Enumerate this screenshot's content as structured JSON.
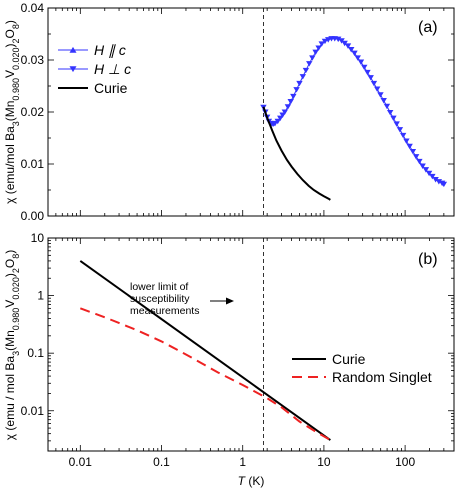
{
  "chart_data": [
    {
      "type": "scatter",
      "panel_label": "(a)",
      "ylabel": "χ (emu/mol Ba3(Mn0.980V0.020)2O8)",
      "xscale": "log",
      "xlim": [
        0.004,
        400
      ],
      "ylim": [
        0,
        0.04
      ],
      "yticks": [
        0.0,
        0.01,
        0.02,
        0.03,
        0.04
      ],
      "ytick_labels": [
        "0.00",
        "0.01",
        "0.02",
        "0.03",
        "0.04"
      ],
      "vline_x": 1.8,
      "legend": {
        "placement": "top-left",
        "entries": [
          {
            "label": "H ∥ c",
            "marker": "triangle-up",
            "color": "#3333ff"
          },
          {
            "label": "H ⊥ c",
            "marker": "triangle-down",
            "color": "#3333ff"
          },
          {
            "label": "Curie",
            "line": "solid",
            "color": "#000000"
          }
        ]
      },
      "series": [
        {
          "name": "H ⊥ c",
          "kind": "markers",
          "color": "#3333ff",
          "x": [
            1.8,
            1.9,
            2.0,
            2.1,
            2.2,
            2.3,
            2.4,
            2.5,
            2.7,
            2.9,
            3.1,
            3.3,
            3.6,
            3.9,
            4.2,
            4.6,
            5.0,
            5.5,
            6.0,
            6.6,
            7.2,
            7.9,
            8.6,
            9.4,
            10.3,
            11.3,
            12.4,
            13.6,
            15.0,
            16.5,
            18.0,
            19.8,
            21.7,
            23.8,
            26.1,
            28.6,
            31.4,
            34.4,
            37.7,
            41.3,
            45.3,
            49.7,
            54.5,
            59.7,
            65.5,
            71.8,
            78.7,
            86.3,
            94.6,
            103.7,
            113.7,
            124.7,
            136.7,
            149.9,
            164.3,
            180.2,
            197.5,
            216.6,
            237.5,
            260.4,
            285.5,
            300
          ],
          "y": [
            0.0209,
            0.02,
            0.019,
            0.0182,
            0.0178,
            0.0177,
            0.0177,
            0.0178,
            0.0182,
            0.0188,
            0.0194,
            0.02,
            0.021,
            0.022,
            0.023,
            0.0243,
            0.0255,
            0.0268,
            0.028,
            0.0293,
            0.0304,
            0.0315,
            0.0323,
            0.0331,
            0.0336,
            0.0339,
            0.0341,
            0.0341,
            0.034,
            0.0337,
            0.0332,
            0.0327,
            0.032,
            0.0313,
            0.0304,
            0.0296,
            0.0286,
            0.0276,
            0.0266,
            0.0255,
            0.0244,
            0.0233,
            0.0222,
            0.0211,
            0.0199,
            0.0188,
            0.0177,
            0.0166,
            0.0155,
            0.0144,
            0.0134,
            0.0124,
            0.0114,
            0.0105,
            0.0096,
            0.0089,
            0.0082,
            0.0076,
            0.007,
            0.0066,
            0.0063,
            0.0061
          ]
        },
        {
          "name": "Curie",
          "kind": "line",
          "color": "#000000",
          "x": [
            1.8,
            2.0,
            2.3,
            2.6,
            3.0,
            3.5,
            4.0,
            4.7,
            5.5,
            6.5,
            7.5,
            8.8,
            10.0,
            11.5,
            12.0
          ],
          "y": [
            0.021,
            0.0189,
            0.0165,
            0.0145,
            0.0126,
            0.0108,
            0.0095,
            0.0081,
            0.0069,
            0.0058,
            0.005,
            0.0043,
            0.0038,
            0.0033,
            0.0031
          ]
        }
      ]
    },
    {
      "type": "line",
      "panel_label": "(b)",
      "xlabel": "T (K)",
      "ylabel": "χ (emu / mol Ba3(Mn0.980V0.020)2O8)",
      "xscale": "log",
      "yscale": "log",
      "xlim": [
        0.004,
        400
      ],
      "ylim": [
        0.002,
        10
      ],
      "xticks": [
        0.01,
        0.1,
        1,
        10,
        100
      ],
      "xtick_labels": [
        "0.01",
        "0.1",
        "1",
        "10",
        "100"
      ],
      "yticks": [
        0.01,
        0.1,
        1,
        10
      ],
      "ytick_labels": [
        "0.01",
        "0.1",
        "1",
        "10"
      ],
      "vline_x": 1.8,
      "annotation": [
        "lower limit of",
        "susceptibility",
        "measurements"
      ],
      "legend": {
        "placement": "right",
        "entries": [
          {
            "label": "Curie",
            "line": "solid",
            "color": "#000000"
          },
          {
            "label": "Random Singlet",
            "line": "dashed",
            "color": "#ee2222"
          }
        ]
      },
      "series": [
        {
          "name": "Curie",
          "kind": "line",
          "style": "solid",
          "color": "#000000",
          "x": [
            0.01,
            12
          ],
          "y": [
            4.0,
            0.0031
          ]
        },
        {
          "name": "Random Singlet",
          "kind": "line",
          "style": "dashed",
          "color": "#ee2222",
          "x": [
            0.01,
            0.02,
            0.05,
            0.1,
            0.2,
            0.5,
            1,
            2,
            3,
            5,
            8,
            12
          ],
          "y": [
            0.6,
            0.42,
            0.25,
            0.16,
            0.095,
            0.046,
            0.028,
            0.0165,
            0.0115,
            0.0065,
            0.0043,
            0.0031
          ]
        }
      ]
    }
  ]
}
